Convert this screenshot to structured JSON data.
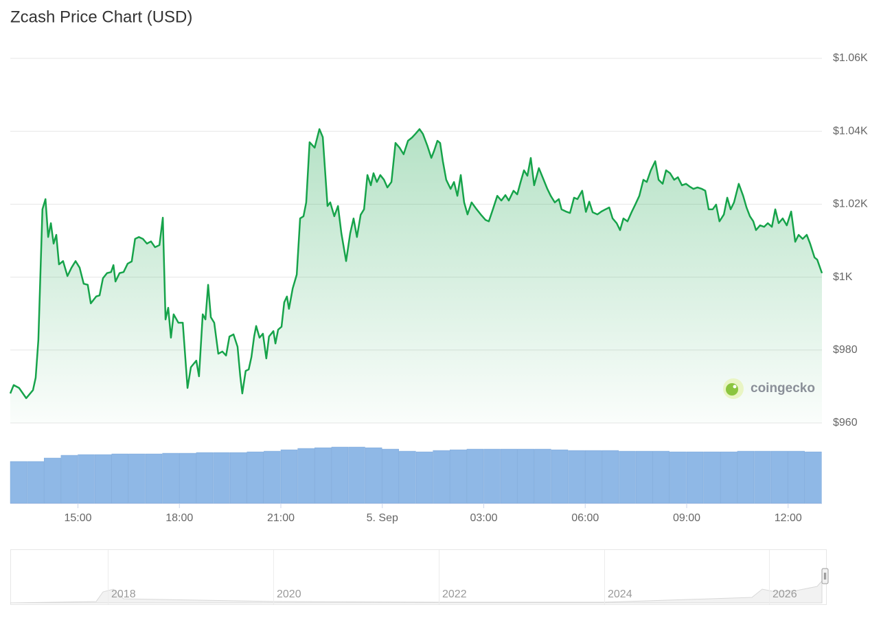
{
  "chart_data": {
    "type": "line",
    "title": "Zcash Price Chart (USD)",
    "color": "#16a34a",
    "x": [
      13.0,
      13.1,
      13.26,
      13.47,
      13.67,
      13.75,
      13.83,
      13.95,
      14.04,
      14.12,
      14.2,
      14.28,
      14.36,
      14.44,
      14.56,
      14.69,
      14.81,
      14.93,
      15.05,
      15.17,
      15.29,
      15.38,
      15.54,
      15.64,
      15.74,
      15.86,
      15.98,
      16.05,
      16.11,
      16.23,
      16.35,
      16.47,
      16.59,
      16.69,
      16.8,
      16.92,
      17.04,
      17.16,
      17.28,
      17.41,
      17.51,
      17.59,
      17.67,
      17.75,
      17.83,
      17.97,
      18.1,
      18.24,
      18.34,
      18.5,
      18.58,
      18.69,
      18.77,
      18.85,
      18.93,
      19.03,
      19.15,
      19.27,
      19.38,
      19.48,
      19.6,
      19.72,
      19.8,
      19.86,
      19.96,
      20.05,
      20.13,
      20.21,
      20.27,
      20.37,
      20.47,
      20.57,
      20.65,
      20.78,
      20.84,
      20.92,
      21.02,
      21.1,
      21.18,
      21.24,
      21.35,
      21.47,
      21.57,
      21.67,
      21.75,
      21.85,
      22.0,
      22.14,
      22.24,
      22.38,
      22.46,
      22.58,
      22.69,
      22.79,
      22.93,
      23.05,
      23.15,
      23.25,
      23.36,
      23.46,
      23.56,
      23.66,
      23.74,
      23.84,
      23.94,
      24.05,
      24.15,
      24.27,
      24.39,
      24.51,
      24.63,
      24.76,
      24.88,
      24.98,
      25.1,
      25.2,
      25.33,
      25.45,
      25.53,
      25.63,
      25.71,
      25.79,
      25.89,
      26.02,
      26.12,
      26.22,
      26.32,
      26.42,
      26.52,
      26.64,
      26.79,
      26.91,
      27.05,
      27.15,
      27.27,
      27.4,
      27.52,
      27.64,
      27.74,
      27.88,
      27.99,
      28.09,
      28.19,
      28.29,
      28.39,
      28.49,
      28.63,
      28.74,
      28.88,
      28.98,
      29.1,
      29.22,
      29.3,
      29.43,
      29.55,
      29.67,
      29.77,
      29.91,
      30.02,
      30.12,
      30.22,
      30.36,
      30.48,
      30.6,
      30.71,
      30.81,
      30.93,
      31.03,
      31.13,
      31.25,
      31.38,
      31.48,
      31.6,
      31.72,
      31.82,
      31.94,
      32.07,
      32.17,
      32.29,
      32.39,
      32.51,
      32.63,
      32.74,
      32.86,
      32.98,
      33.08,
      33.2,
      33.32,
      33.45,
      33.55,
      33.65,
      33.77,
      33.87,
      33.97,
      34.1,
      34.2,
      34.3,
      34.4,
      34.54,
      34.67,
      34.77,
      34.87,
      34.97,
      35.05,
      35.17,
      35.29,
      35.4,
      35.52,
      35.62,
      35.72,
      35.84,
      35.96,
      36.09,
      36.21,
      36.31,
      36.43,
      36.55,
      36.65,
      36.78,
      36.86,
      37.0
    ],
    "values": [
      968.1,
      970.4,
      969.6,
      966.8,
      969.0,
      972.4,
      982.8,
      1018.6,
      1021.4,
      1011.0,
      1014.8,
      1009.2,
      1011.6,
      1003.5,
      1004.4,
      1000.3,
      1002.6,
      1004.4,
      1002.6,
      998.2,
      997.9,
      992.8,
      994.7,
      995.0,
      999.7,
      1001.1,
      1001.4,
      1003.3,
      998.8,
      1001.1,
      1001.4,
      1003.7,
      1004.3,
      1010.5,
      1011.0,
      1010.5,
      1009.2,
      1009.8,
      1008.2,
      1008.8,
      1016.3,
      988.4,
      991.6,
      983.4,
      989.8,
      987.5,
      987.5,
      969.6,
      975.3,
      977.1,
      972.8,
      989.8,
      988.4,
      997.9,
      989.0,
      987.5,
      979.0,
      979.6,
      978.5,
      983.7,
      984.3,
      980.9,
      972.8,
      968.1,
      974.3,
      974.7,
      978.1,
      983.7,
      986.6,
      983.4,
      984.5,
      977.7,
      983.7,
      985.2,
      981.8,
      985.6,
      986.4,
      993.1,
      994.7,
      991.3,
      996.9,
      1000.7,
      1016.1,
      1016.7,
      1020.5,
      1037.0,
      1035.5,
      1040.6,
      1038.4,
      1019.5,
      1020.5,
      1016.7,
      1019.5,
      1012.0,
      1004.4,
      1012.0,
      1016.1,
      1011.0,
      1017.1,
      1018.6,
      1028.0,
      1025.2,
      1028.5,
      1026.1,
      1028.0,
      1026.7,
      1024.6,
      1026.1,
      1036.8,
      1035.5,
      1033.7,
      1037.4,
      1038.3,
      1039.3,
      1040.6,
      1039.3,
      1036.1,
      1032.7,
      1034.6,
      1037.4,
      1036.8,
      1031.8,
      1026.7,
      1024.2,
      1026.1,
      1022.3,
      1028.0,
      1020.5,
      1017.2,
      1020.5,
      1018.6,
      1017.2,
      1015.7,
      1015.3,
      1018.6,
      1022.3,
      1021.0,
      1022.5,
      1021.0,
      1023.7,
      1022.7,
      1026.1,
      1029.3,
      1027.8,
      1032.7,
      1025.2,
      1029.9,
      1027.4,
      1024.2,
      1022.3,
      1020.5,
      1021.4,
      1018.6,
      1018.0,
      1017.6,
      1021.8,
      1021.4,
      1023.7,
      1017.9,
      1020.7,
      1017.8,
      1017.2,
      1018.0,
      1018.6,
      1019.1,
      1016.1,
      1014.8,
      1012.9,
      1016.1,
      1015.3,
      1018.0,
      1019.9,
      1022.3,
      1026.7,
      1026.1,
      1029.3,
      1031.8,
      1026.7,
      1025.6,
      1029.3,
      1028.5,
      1026.7,
      1027.4,
      1025.2,
      1025.6,
      1024.9,
      1024.2,
      1024.6,
      1024.2,
      1023.7,
      1018.6,
      1018.6,
      1019.9,
      1015.3,
      1017.2,
      1021.8,
      1018.6,
      1020.5,
      1025.6,
      1022.3,
      1019.1,
      1016.7,
      1015.3,
      1012.9,
      1014.2,
      1013.8,
      1014.8,
      1013.8,
      1018.6,
      1014.8,
      1016.1,
      1014.2,
      1018.0,
      1009.7,
      1011.6,
      1010.5,
      1011.6,
      1009.2,
      1005.4,
      1004.8,
      1001.1
    ],
    "xlim": [
      13,
      37
    ],
    "xticks": [
      {
        "value": 15,
        "label": "15:00"
      },
      {
        "value": 18,
        "label": "18:00"
      },
      {
        "value": 21,
        "label": "21:00"
      },
      {
        "value": 24,
        "label": "5. Sep"
      },
      {
        "value": 27,
        "label": "03:00"
      },
      {
        "value": 30,
        "label": "06:00"
      },
      {
        "value": 33,
        "label": "09:00"
      },
      {
        "value": 36,
        "label": "12:00"
      }
    ],
    "ylim": [
      960,
      1060
    ],
    "yticks": [
      {
        "value": 960,
        "label": "$960"
      },
      {
        "value": 980,
        "label": "$980"
      },
      {
        "value": 1000,
        "label": "$1K"
      },
      {
        "value": 1020,
        "label": "$1.02K"
      },
      {
        "value": 1040,
        "label": "$1.04K"
      },
      {
        "value": 1060,
        "label": "$1.06K"
      }
    ],
    "grid": true,
    "watermark": "coingecko",
    "volume": {
      "color": "#8fb8e6",
      "ylim": [
        0,
        85
      ],
      "values": [
        61,
        61,
        66,
        70,
        71,
        71,
        72,
        72,
        72,
        73,
        73,
        74,
        74,
        74,
        75,
        76,
        78,
        80,
        81,
        82,
        82,
        81,
        79,
        76,
        75,
        77,
        78,
        79,
        79,
        79,
        79,
        79,
        78,
        77,
        77,
        77,
        76,
        76,
        76,
        75,
        75,
        75,
        75,
        76,
        76,
        76,
        76,
        75
      ]
    },
    "navigator": {
      "labels": [
        "2018",
        "2020",
        "2022",
        "2024",
        "2026"
      ]
    }
  }
}
